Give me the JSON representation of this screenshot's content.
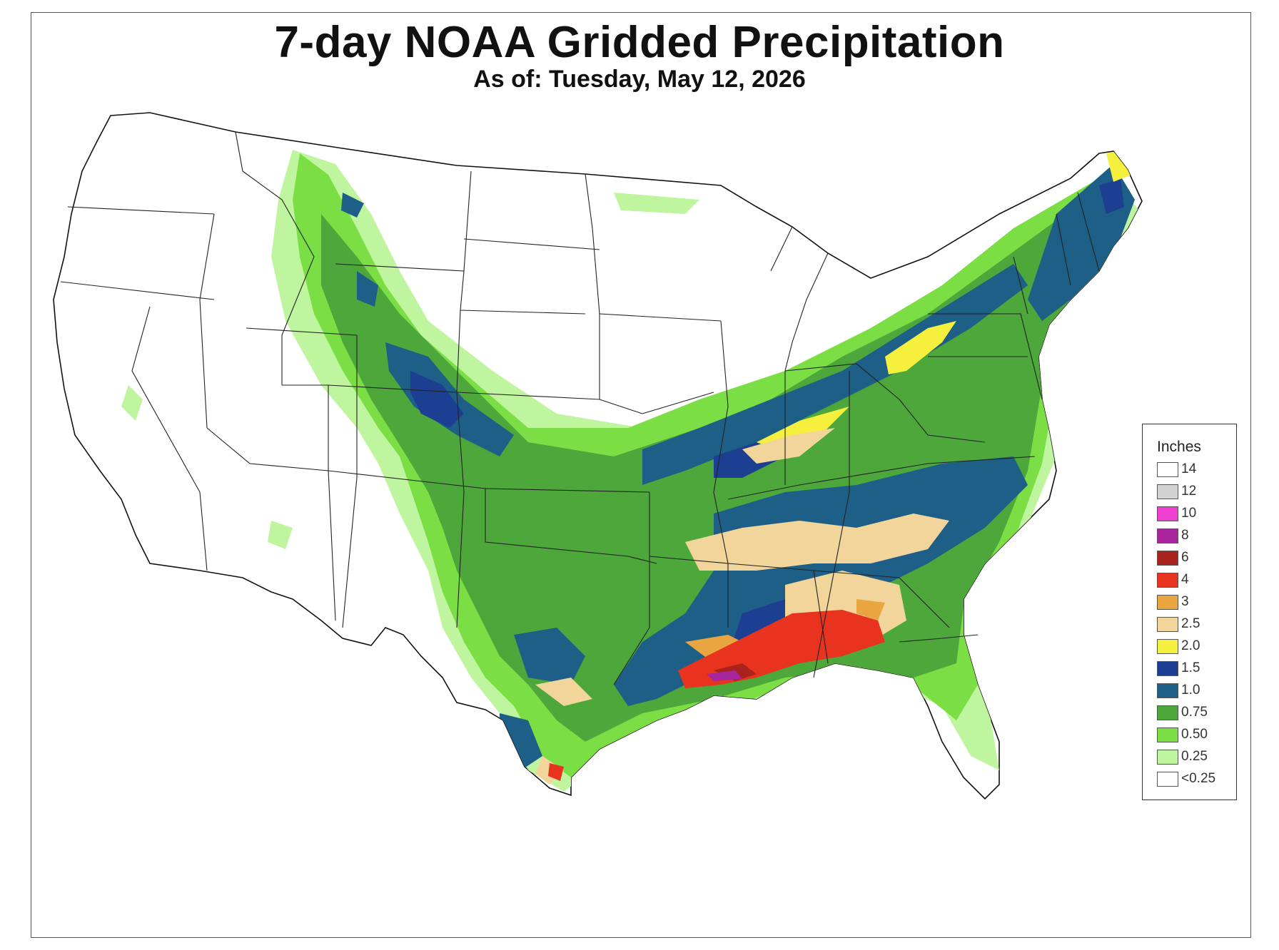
{
  "title": "7-day NOAA Gridded Precipitation",
  "subtitle": "As of: Tuesday, May 12, 2026",
  "legend": {
    "title": "Inches",
    "items": [
      {
        "label": "14",
        "color": "#ffffff"
      },
      {
        "label": "12",
        "color": "#d3d3d3"
      },
      {
        "label": "10",
        "color": "#ee3fd0"
      },
      {
        "label": "8",
        "color": "#a8259e"
      },
      {
        "label": "6",
        "color": "#a8231b"
      },
      {
        "label": "4",
        "color": "#e8331f"
      },
      {
        "label": "3",
        "color": "#e9a640"
      },
      {
        "label": "2.5",
        "color": "#f1d59a"
      },
      {
        "label": "2.0",
        "color": "#f5ef3e"
      },
      {
        "label": "1.5",
        "color": "#1c3f92"
      },
      {
        "label": "1.0",
        "color": "#1d5f87"
      },
      {
        "label": "0.75",
        "color": "#4ea73a"
      },
      {
        "label": "0.50",
        "color": "#7bde45"
      },
      {
        "label": "0.25",
        "color": "#bff59e"
      },
      {
        "label": "<0.25",
        "color": "#ffffff"
      }
    ]
  }
}
